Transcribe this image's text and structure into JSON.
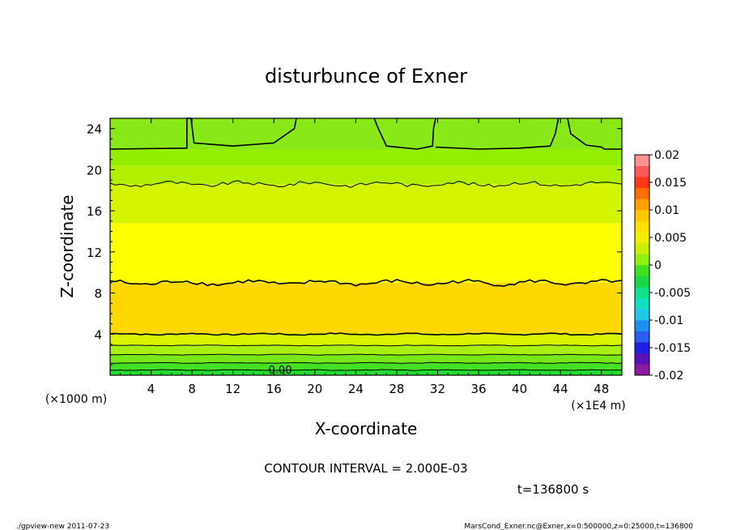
{
  "chart_data": {
    "type": "heatmap",
    "title": "disturbunce of Exner",
    "xlabel": "X-coordinate",
    "ylabel": "Z-coordinate",
    "x_unit": "(×1E4 m)",
    "y_unit": "(×1000 m)",
    "xlim": [
      0,
      50
    ],
    "ylim": [
      0,
      25
    ],
    "x_ticks": [
      4,
      8,
      12,
      16,
      20,
      24,
      28,
      32,
      36,
      40,
      44,
      48
    ],
    "y_ticks": [
      4,
      8,
      12,
      16,
      20,
      24
    ],
    "contour_label": "0.00",
    "contour_interval": "CONTOUR INTERVAL = 2.000E-03",
    "time_label": "t=136800 s",
    "colorbar": {
      "min": -0.02,
      "max": 0.02,
      "tick_labels": [
        "0.02",
        "0.015",
        "0.01",
        "0.005",
        "0",
        "-0.005",
        "-0.01",
        "-0.015",
        "-0.02"
      ],
      "colors": [
        "#8a1aa0",
        "#5a10b8",
        "#2020e0",
        "#2a5cf0",
        "#1a90f0",
        "#20c8e8",
        "#10e0c0",
        "#10e08a",
        "#18d848",
        "#40e020",
        "#90f010",
        "#c8f000",
        "#f0f000",
        "#ffe000",
        "#ffc800",
        "#ffa000",
        "#ff7000",
        "#ff3818",
        "#ff5a5a",
        "#ff9090"
      ]
    },
    "bands": [
      {
        "z0": 0,
        "z1": 0.5,
        "value": 0.001,
        "color": "#22dc30"
      },
      {
        "z0": 0.5,
        "z1": 1.2,
        "value": 0.002,
        "color": "#44e024"
      },
      {
        "z0": 1.2,
        "z1": 2.0,
        "value": 0.003,
        "color": "#78e818"
      },
      {
        "z0": 2.0,
        "z1": 2.9,
        "value": 0.004,
        "color": "#a8f010"
      },
      {
        "z0": 2.9,
        "z1": 4.1,
        "value": 0.005,
        "color": "#d8f400"
      },
      {
        "z0": 4.1,
        "z1": 9.0,
        "value": 0.007,
        "color": "#ffd800"
      },
      {
        "z0": 9.0,
        "z1": 14.8,
        "value": 0.005,
        "color": "#ffff00"
      },
      {
        "z0": 14.8,
        "z1": 18.6,
        "value": 0.004,
        "color": "#d4f400"
      },
      {
        "z0": 18.6,
        "z1": 20.4,
        "value": 0.003,
        "color": "#b0f000"
      },
      {
        "z0": 20.4,
        "z1": 22.0,
        "value": 0.002,
        "color": "#94ee00"
      },
      {
        "z0": 22.0,
        "z1": 25,
        "value": 0.001,
        "color": "#88e818"
      }
    ],
    "contour_levels_z": [
      0.5,
      1.2,
      2.0,
      2.9,
      4.0,
      9.0,
      18.6
    ]
  },
  "footer": {
    "program": "./gpview-new   2011-07-23",
    "source": "MarsCond_Exner.nc@Exner,x=0:500000,z=0:25000,t=136800"
  }
}
